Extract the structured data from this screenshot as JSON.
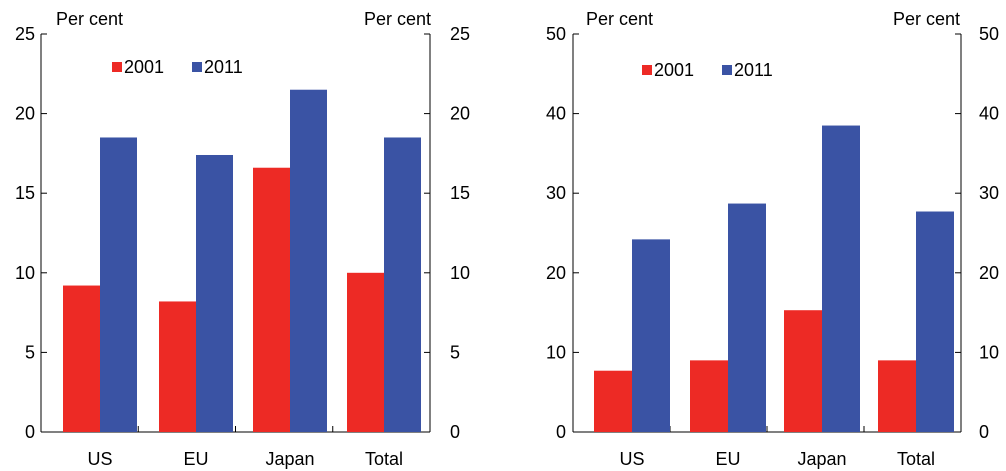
{
  "chart_data": [
    {
      "type": "bar",
      "categories": [
        "US",
        "EU",
        "Japan",
        "Total"
      ],
      "series": [
        {
          "name": "2001",
          "color": "#ed2a25",
          "values": [
            9.2,
            8.2,
            16.6,
            10.0
          ]
        },
        {
          "name": "2011",
          "color": "#3a53a4",
          "values": [
            18.5,
            17.4,
            21.5,
            18.5
          ]
        }
      ],
      "ylabel_left": "Per cent",
      "ylabel_right": "Per cent",
      "ylim": [
        0,
        25
      ],
      "yticks": [
        "0",
        "5",
        "10",
        "15",
        "20",
        "25"
      ],
      "legend_position": "top-left",
      "grid": false
    },
    {
      "type": "bar",
      "categories": [
        "US",
        "EU",
        "Japan",
        "Total"
      ],
      "series": [
        {
          "name": "2001",
          "color": "#ed2a25",
          "values": [
            7.7,
            9.0,
            15.3,
            9.0
          ]
        },
        {
          "name": "2011",
          "color": "#3a53a4",
          "values": [
            24.2,
            28.7,
            38.5,
            27.7
          ]
        }
      ],
      "ylabel_left": "Per cent",
      "ylabel_right": "Per cent",
      "ylim": [
        0,
        50
      ],
      "yticks": [
        "0",
        "10",
        "20",
        "30",
        "40",
        "50"
      ],
      "legend_position": "top-left",
      "grid": false
    }
  ]
}
